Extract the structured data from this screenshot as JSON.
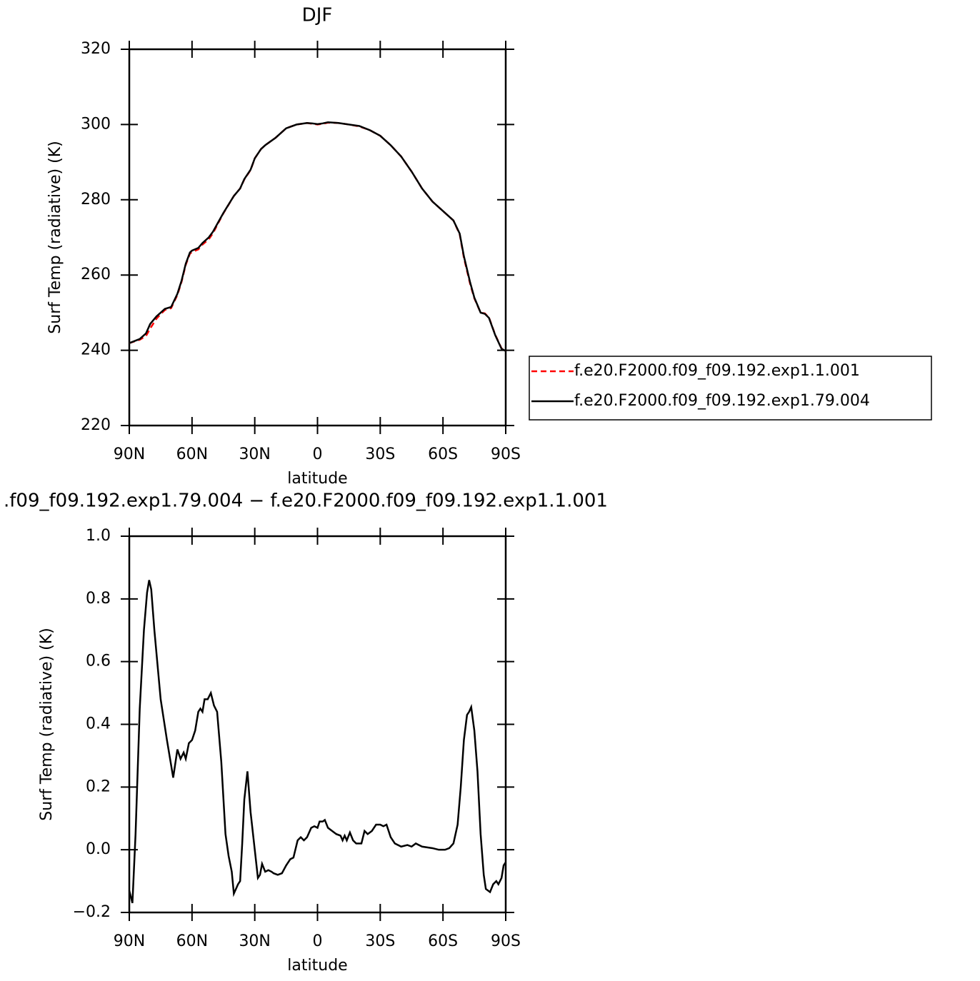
{
  "chart_data": [
    {
      "type": "line",
      "title": "DJF",
      "ylabel": "Surf Temp (radiative) (K)",
      "xlabel": "latitude",
      "xlim": [
        90,
        -90
      ],
      "ylim": [
        220,
        320
      ],
      "xticks": [
        {
          "value": 90,
          "label": "90N"
        },
        {
          "value": 60,
          "label": "60N"
        },
        {
          "value": 30,
          "label": "30N"
        },
        0,
        {
          "value": -30,
          "label": "30S"
        },
        {
          "value": -60,
          "label": "60S"
        },
        {
          "value": -90,
          "label": "90S"
        }
      ],
      "yticks": [
        220,
        240,
        260,
        280,
        300,
        320
      ],
      "x": [
        90,
        85,
        82,
        80,
        77,
        75,
        73,
        70,
        67,
        65,
        63,
        61,
        60,
        57,
        55,
        52,
        50,
        47,
        45,
        40,
        37,
        35,
        32,
        30,
        27,
        25,
        20,
        15,
        10,
        5,
        2.5,
        0,
        -2.5,
        -5,
        -10,
        -15,
        -20,
        -25,
        -30,
        -35,
        -40,
        -45,
        -50,
        -55,
        -60,
        -65,
        -68,
        -70,
        -73,
        -75,
        -78,
        -80,
        -82,
        -85,
        -88,
        -90
      ],
      "series": [
        {
          "name": "f.e20.F2000.f09_f09.192.exp1.1.001",
          "color": "#ff0000",
          "dash": true,
          "values": [
            241.9,
            242.8,
            243.8,
            245.8,
            248.4,
            249.6,
            250.7,
            251.2,
            254.7,
            258.2,
            262.7,
            265.7,
            266.1,
            266.8,
            268.1,
            269.5,
            271.1,
            274.3,
            276.4,
            281,
            283,
            285.4,
            287.9,
            291,
            293.5,
            294.5,
            296.5,
            299,
            300,
            300.4,
            300.2,
            300,
            300.2,
            300.5,
            300.4,
            300,
            299.5,
            298.5,
            297,
            294.5,
            291.5,
            287.5,
            283,
            279.5,
            277,
            274.5,
            270.8,
            264.6,
            257.6,
            253.8,
            250,
            249.8,
            248.7,
            244.1,
            240.5,
            239.8
          ]
        },
        {
          "name": "f.e20.F2000.f09_f09.192.exp1.79.004",
          "color": "#000000",
          "dash": false,
          "values": [
            241.9,
            243,
            244.5,
            247,
            249,
            250,
            251,
            251.5,
            255,
            258.5,
            263,
            266,
            266.5,
            267.2,
            268.5,
            270,
            271.5,
            274.5,
            276.5,
            281,
            283,
            285.5,
            288,
            291,
            293.5,
            294.5,
            296.5,
            299,
            300,
            300.4,
            300.3,
            300.1,
            300.3,
            300.6,
            300.4,
            300,
            299.6,
            298.5,
            297,
            294.5,
            291.5,
            287.5,
            283,
            279.5,
            277,
            274.5,
            271,
            265,
            258,
            254,
            250,
            249.7,
            248.6,
            244,
            240.4,
            239.8
          ]
        }
      ]
    },
    {
      "type": "line",
      "title": ".f09_f09.192.exp1.79.004 − f.e20.F2000.f09_f09.192.exp1.1.001",
      "ylabel": "Surf Temp (radiative) (K)",
      "xlabel": "latitude",
      "xlim": [
        90,
        -90
      ],
      "ylim": [
        -0.2,
        1.0
      ],
      "xticks": [
        {
          "value": 90,
          "label": "90N"
        },
        {
          "value": 60,
          "label": "60N"
        },
        {
          "value": 30,
          "label": "30N"
        },
        0,
        {
          "value": -30,
          "label": "30S"
        },
        {
          "value": -60,
          "label": "60S"
        },
        {
          "value": -90,
          "label": "90S"
        }
      ],
      "yticks": [
        {
          "value": -0.2,
          "label": "−0.2"
        },
        {
          "value": 0,
          "label": "0.0"
        },
        0.2,
        0.4,
        0.6,
        0.8,
        {
          "value": 1,
          "label": "1.0"
        }
      ],
      "color": "#000000",
      "x": [
        90,
        88.5,
        87,
        85,
        83,
        81.5,
        80.5,
        79.5,
        78,
        75,
        72,
        69,
        67,
        65.5,
        64,
        63,
        61.5,
        60,
        58.5,
        57,
        56,
        55,
        54,
        52.5,
        51,
        49.5,
        48,
        46,
        44,
        42.5,
        41,
        40,
        38,
        37,
        36,
        35,
        33.5,
        32,
        30,
        28.5,
        27.5,
        26.5,
        25,
        23.5,
        22,
        21,
        19,
        17,
        15,
        13,
        11.5,
        9.5,
        8,
        6.5,
        5,
        3,
        1.5,
        0,
        -1,
        -2.5,
        -3.5,
        -5,
        -7,
        -9,
        -11,
        -12,
        -13,
        -14,
        -15.5,
        -17,
        -18.5,
        -21,
        -22.5,
        -24,
        -26,
        -28,
        -30,
        -31.5,
        -33,
        -35,
        -37,
        -40,
        -43,
        -45,
        -47,
        -50,
        -55,
        -58,
        -61,
        -63,
        -65,
        -67,
        -68.5,
        -70,
        -71.5,
        -72.5,
        -73.5,
        -75,
        -76.5,
        -78,
        -79.5,
        -80.5,
        -81.5,
        -82.5,
        -84,
        -85.5,
        -86.5,
        -88,
        -89,
        -90
      ],
      "values": [
        -0.13,
        -0.17,
        0.05,
        0.45,
        0.7,
        0.82,
        0.86,
        0.83,
        0.7,
        0.48,
        0.35,
        0.23,
        0.32,
        0.29,
        0.31,
        0.29,
        0.34,
        0.35,
        0.38,
        0.44,
        0.45,
        0.44,
        0.48,
        0.48,
        0.5,
        0.46,
        0.44,
        0.28,
        0.05,
        -0.02,
        -0.07,
        -0.14,
        -0.11,
        -0.1,
        0.02,
        0.16,
        0.25,
        0.12,
        0.0,
        -0.09,
        -0.08,
        -0.045,
        -0.07,
        -0.065,
        -0.07,
        -0.075,
        -0.08,
        -0.075,
        -0.05,
        -0.03,
        -0.025,
        0.03,
        0.04,
        0.03,
        0.04,
        0.07,
        0.075,
        0.07,
        0.09,
        0.09,
        0.095,
        0.07,
        0.06,
        0.05,
        0.045,
        0.03,
        0.045,
        0.03,
        0.055,
        0.03,
        0.02,
        0.02,
        0.06,
        0.05,
        0.06,
        0.08,
        0.08,
        0.075,
        0.08,
        0.04,
        0.02,
        0.01,
        0.015,
        0.01,
        0.02,
        0.01,
        0.005,
        0.0,
        0.0,
        0.005,
        0.02,
        0.08,
        0.2,
        0.35,
        0.43,
        0.44,
        0.455,
        0.38,
        0.25,
        0.05,
        -0.08,
        -0.125,
        -0.13,
        -0.135,
        -0.11,
        -0.1,
        -0.11,
        -0.09,
        -0.05,
        -0.04
      ]
    }
  ]
}
